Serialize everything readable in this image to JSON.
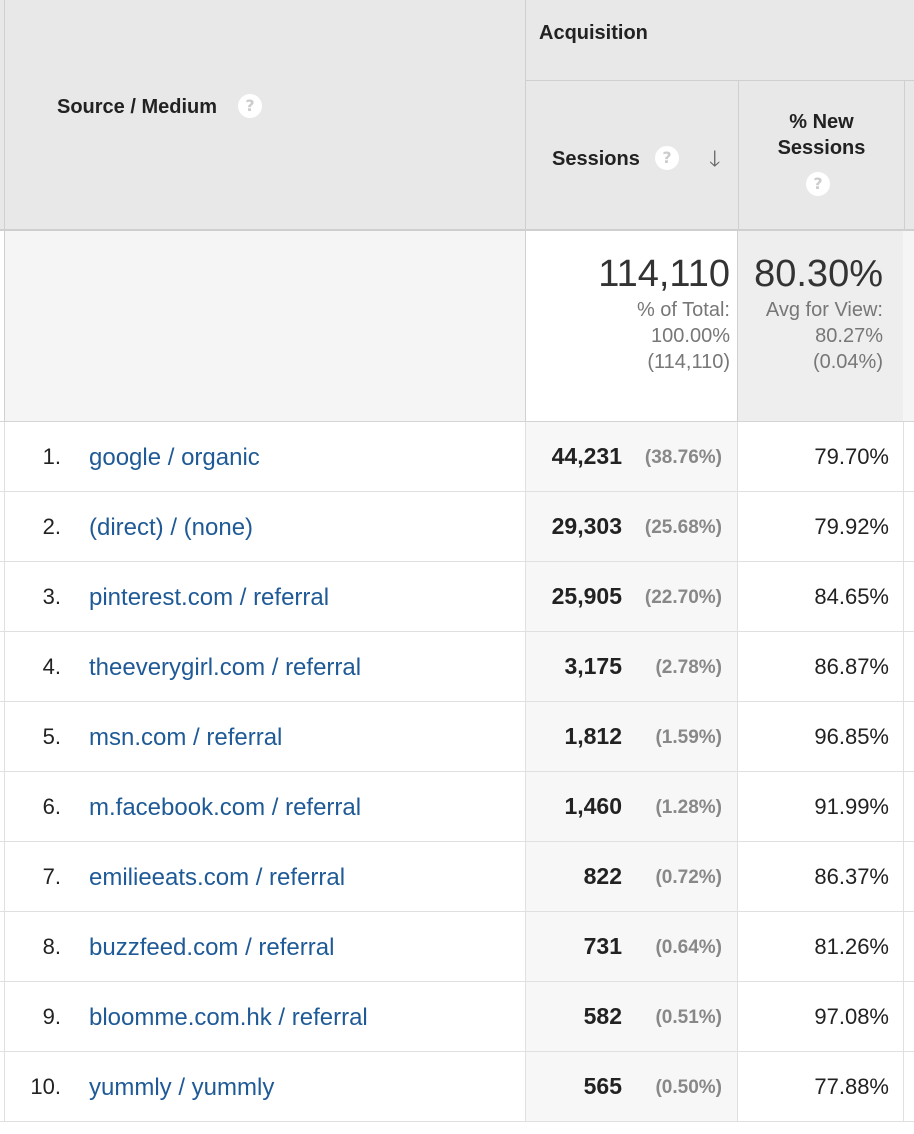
{
  "header": {
    "source_medium": "Source / Medium",
    "acquisition": "Acquisition",
    "sessions": "Sessions",
    "new_sessions_line1": "% New",
    "new_sessions_line2": "Sessions",
    "help_glyph": "?",
    "sort_arrow": "🡓"
  },
  "totals": {
    "sessions": "114,110",
    "sessions_sub1": "% of Total:",
    "sessions_sub2": "100.00%",
    "sessions_sub3": "(114,110)",
    "new_sessions": "80.30%",
    "new_sessions_sub1": "Avg for View:",
    "new_sessions_sub2": "80.27%",
    "new_sessions_sub3": "(0.04%)"
  },
  "rows": [
    {
      "index": "1.",
      "source": "google / organic",
      "sessions": "44,231",
      "pct": "(38.76%)",
      "new": "79.70%"
    },
    {
      "index": "2.",
      "source": "(direct) / (none)",
      "sessions": "29,303",
      "pct": "(25.68%)",
      "new": "79.92%"
    },
    {
      "index": "3.",
      "source": "pinterest.com / referral",
      "sessions": "25,905",
      "pct": "(22.70%)",
      "new": "84.65%"
    },
    {
      "index": "4.",
      "source": "theeverygirl.com / referral",
      "sessions": "3,175",
      "pct": "(2.78%)",
      "new": "86.87%"
    },
    {
      "index": "5.",
      "source": "msn.com / referral",
      "sessions": "1,812",
      "pct": "(1.59%)",
      "new": "96.85%"
    },
    {
      "index": "6.",
      "source": "m.facebook.com / referral",
      "sessions": "1,460",
      "pct": "(1.28%)",
      "new": "91.99%"
    },
    {
      "index": "7.",
      "source": "emilieeats.com / referral",
      "sessions": "822",
      "pct": "(0.72%)",
      "new": "86.37%"
    },
    {
      "index": "8.",
      "source": "buzzfeed.com / referral",
      "sessions": "731",
      "pct": "(0.64%)",
      "new": "81.26%"
    },
    {
      "index": "9.",
      "source": "bloomme.com.hk / referral",
      "sessions": "582",
      "pct": "(0.51%)",
      "new": "97.08%"
    },
    {
      "index": "10.",
      "source": "yummly / yummly",
      "sessions": "565",
      "pct": "(0.50%)",
      "new": "77.88%"
    }
  ]
}
